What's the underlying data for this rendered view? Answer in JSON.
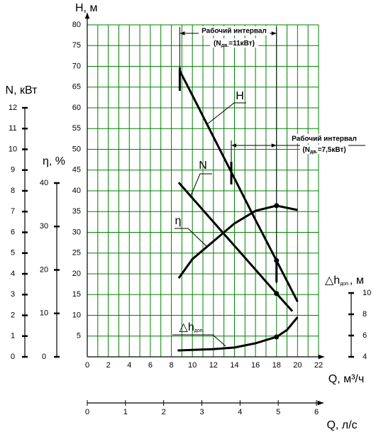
{
  "chart_data": {
    "type": "line",
    "xlabel": "Q, м³/ч",
    "xlim": [
      0,
      22
    ],
    "xticks": [
      0,
      2,
      4,
      6,
      8,
      10,
      12,
      14,
      16,
      18,
      20,
      22
    ],
    "x_minor_ticks": [
      1,
      3,
      5,
      7,
      9,
      11,
      13,
      15,
      17,
      19,
      21
    ],
    "x2label": "Q, л/с",
    "x2lim": [
      0,
      6
    ],
    "x2ticks": [
      0,
      1,
      2,
      3,
      4,
      5,
      6
    ],
    "ylabel": "H, м",
    "ylim": [
      0,
      80
    ],
    "yticks": [
      5,
      10,
      15,
      20,
      25,
      30,
      35,
      40,
      45,
      50,
      55,
      60,
      65,
      70,
      75,
      80
    ],
    "y2label": "N, кВт",
    "y2lim": [
      0,
      12
    ],
    "y2ticks": [
      0,
      1,
      2,
      3,
      4,
      5,
      6,
      7,
      8,
      9,
      10,
      11,
      12
    ],
    "y3label": "η, %",
    "y3lim": [
      0,
      40
    ],
    "y3ticks": [
      0,
      10,
      20,
      30,
      40
    ],
    "y4label": "△h",
    "y4label_sub": "доп.",
    "y4label_suffix": ", м",
    "y4lim": [
      4,
      10
    ],
    "y4ticks": [
      4,
      6,
      8,
      10
    ],
    "grid": true,
    "grid_color": "#008000",
    "marker_x": 18,
    "series": [
      {
        "name": "H",
        "axis": "y",
        "color": "#000000",
        "x": [
          8.8,
          10,
          12,
          14,
          16,
          18,
          20
        ],
        "values": [
          68.9,
          63,
          53,
          43,
          33,
          23.2,
          13.3
        ]
      },
      {
        "name": "N",
        "axis": "y2",
        "color": "#000000",
        "x": [
          8.7,
          10,
          12,
          14,
          16,
          18,
          19.5
        ],
        "values": [
          8.4,
          7.65,
          6.5,
          5.35,
          4.2,
          3.05,
          2.2
        ]
      },
      {
        "name": "η",
        "axis": "y3",
        "color": "#000000",
        "x": [
          8.7,
          10,
          12,
          14,
          16,
          18,
          20
        ],
        "values": [
          18.1,
          22.5,
          26.6,
          30.7,
          33.6,
          34.8,
          33.8
        ]
      },
      {
        "name": "△h",
        "name_sub": "доп.",
        "axis": "y4",
        "color": "#000000",
        "x": [
          8.6,
          12,
          14,
          16,
          18,
          19,
          20
        ],
        "values": [
          4.6,
          4.73,
          4.87,
          5.27,
          5.87,
          6.53,
          7.73
        ]
      }
    ],
    "annotations": [
      {
        "text": "Рабочий интервал",
        "note": [
          "(N",
          "дв.",
          "=11кВт)"
        ],
        "x_range": [
          8.8,
          18
        ]
      },
      {
        "text": "Рабочий интервал",
        "note": [
          "(N",
          "дв.",
          "=7,5кВт)"
        ],
        "x_range": [
          13.7,
          18
        ]
      }
    ]
  }
}
